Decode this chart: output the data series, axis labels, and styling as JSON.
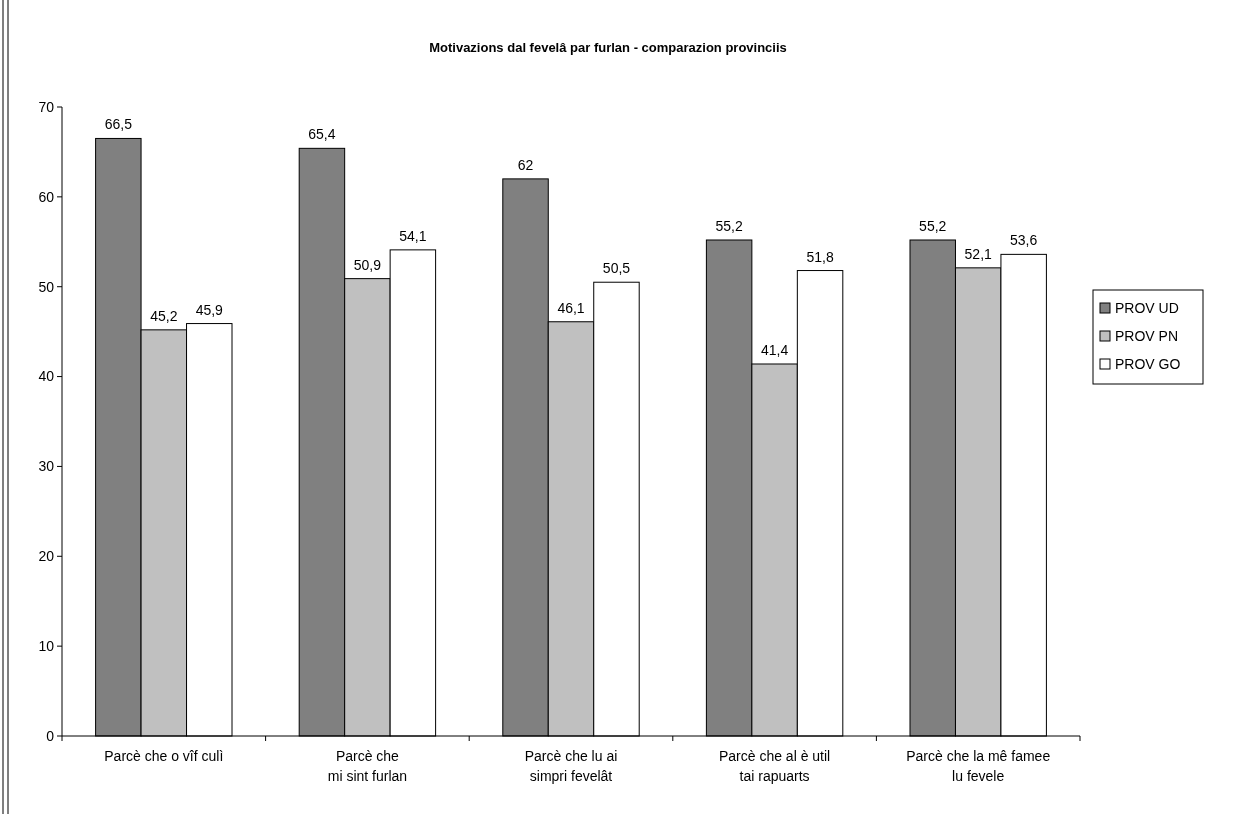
{
  "chart_data": {
    "type": "bar",
    "title": "Motivazions dal fevelâ par furlan - comparazion provinciis",
    "categories": [
      "Parcè che o vîf culì",
      "Parcè che\nmi sint furlan",
      "Parcè che lu ai\nsimpri fevelât",
      "Parcè che al è util\ntai rapuarts",
      "Parcè che la mê famee\nlu fevele"
    ],
    "series": [
      {
        "name": "PROV UD",
        "color": "#808080",
        "values": [
          66.5,
          65.4,
          62,
          55.2,
          55.2
        ],
        "value_labels": [
          "66,5",
          "65,4",
          "62",
          "55,2",
          "55,2"
        ]
      },
      {
        "name": "PROV PN",
        "color": "#c0c0c0",
        "values": [
          45.2,
          50.9,
          46.1,
          41.4,
          52.1
        ],
        "value_labels": [
          "45,2",
          "50,9",
          "46,1",
          "41,4",
          "52,1"
        ]
      },
      {
        "name": "PROV GO",
        "color": "#ffffff",
        "values": [
          45.9,
          54.1,
          50.5,
          51.8,
          53.6
        ],
        "value_labels": [
          "45,9",
          "54,1",
          "50,5",
          "51,8",
          "53,6"
        ]
      }
    ],
    "ylim": [
      0,
      70
    ],
    "yticks": [
      0,
      10,
      20,
      30,
      40,
      50,
      60,
      70
    ],
    "legend": "right",
    "grid": false
  }
}
